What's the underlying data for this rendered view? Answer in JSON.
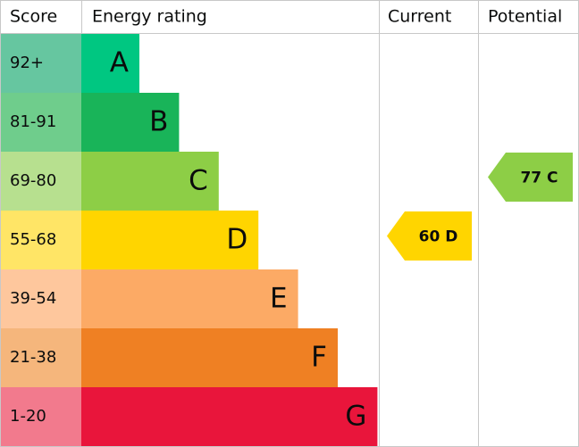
{
  "header": {
    "score": "Score",
    "rating": "Energy rating",
    "current": "Current",
    "potential": "Potential"
  },
  "rows": [
    {
      "score": "92+",
      "letter": "A",
      "color": "#00c781",
      "score_color": "#66c6a0"
    },
    {
      "score": "81-91",
      "letter": "B",
      "color": "#19b459",
      "score_color": "#6fcd8c"
    },
    {
      "score": "69-80",
      "letter": "C",
      "color": "#8dce46",
      "score_color": "#b7e08f"
    },
    {
      "score": "55-68",
      "letter": "D",
      "color": "#ffd500",
      "score_color": "#ffe566"
    },
    {
      "score": "39-54",
      "letter": "E",
      "color": "#fcaa65",
      "score_color": "#fec79d"
    },
    {
      "score": "21-38",
      "letter": "F",
      "color": "#ef8023",
      "score_color": "#f5b67c"
    },
    {
      "score": "1-20",
      "letter": "G",
      "color": "#e9153b",
      "score_color": "#f27a8d"
    }
  ],
  "current": {
    "score": 60,
    "letter": "D"
  },
  "potential": {
    "score": 77,
    "letter": "C"
  }
}
